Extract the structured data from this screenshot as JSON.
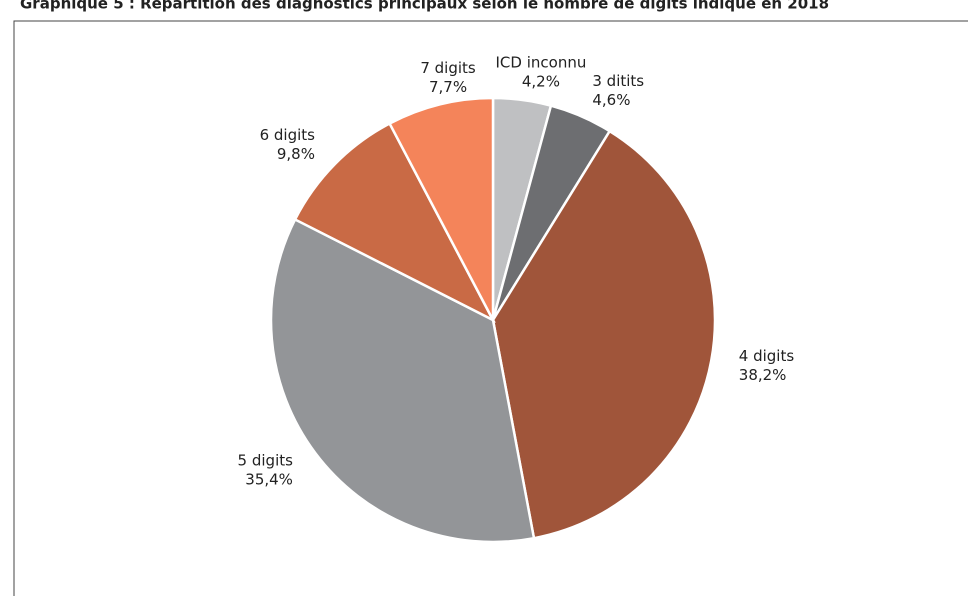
{
  "chart_data": {
    "type": "pie",
    "title": "Graphique 5 : Répartition des diagnostics principaux selon le nombre de digits indiqué en 2018",
    "categories": [
      "ICD inconnu",
      "3 ditits",
      "4 digits",
      "5 digits",
      "6 digits",
      "7 digits"
    ],
    "values": [
      4.2,
      4.6,
      38.2,
      35.4,
      9.8,
      7.7
    ],
    "value_labels": [
      "4,2%",
      "4,6%",
      "38,2%",
      "35,4%",
      "9,8%",
      "7,7%"
    ],
    "colors": [
      "#bfc0c2",
      "#6d6e71",
      "#a0553a",
      "#939598",
      "#c96a45",
      "#f4845a"
    ]
  }
}
